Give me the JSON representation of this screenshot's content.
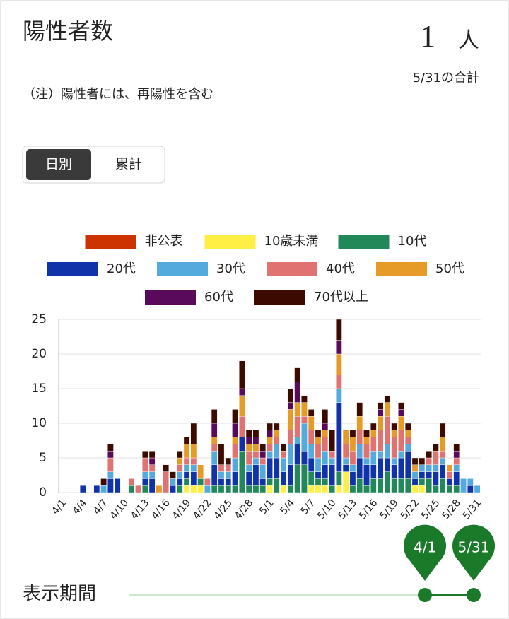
{
  "header": {
    "title": "陽性者数",
    "value": 1,
    "unit": "人",
    "caption": "5/31の合計",
    "note": "（注）陽性者には、再陽性を含む"
  },
  "tabs": [
    "日別",
    "累計"
  ],
  "chart_data": {
    "type": "bar",
    "stacked": true,
    "categories": [
      "4/1",
      null,
      null,
      "4/4",
      null,
      null,
      "4/7",
      null,
      null,
      "4/10",
      null,
      null,
      "4/13",
      null,
      null,
      "4/16",
      null,
      null,
      "4/19",
      null,
      null,
      "4/22",
      null,
      null,
      "4/25",
      null,
      null,
      "4/28",
      null,
      null,
      "5/1",
      null,
      null,
      "5/4",
      null,
      null,
      "5/7",
      null,
      null,
      "5/10",
      null,
      null,
      "5/13",
      null,
      null,
      "5/16",
      null,
      null,
      "5/19",
      null,
      null,
      "5/22",
      null,
      null,
      "5/25",
      null,
      null,
      "5/28",
      null,
      null,
      "5/31"
    ],
    "series": [
      {
        "name": "非公表",
        "color": "#cc3300",
        "values": [
          0,
          0,
          0,
          0,
          0,
          0,
          0,
          0,
          0,
          0,
          0,
          0,
          0,
          0,
          0,
          0,
          0,
          0,
          0,
          0,
          0,
          0,
          0,
          0,
          0,
          0,
          0,
          0,
          0,
          0,
          0,
          0,
          0,
          0,
          0,
          0,
          0,
          0,
          0,
          0,
          0,
          0,
          0,
          0,
          0,
          0,
          0,
          0,
          0,
          0,
          0,
          0,
          0,
          0,
          0,
          0,
          0,
          0,
          0,
          0,
          0
        ]
      },
      {
        "name": "10歳未満",
        "color": "#ffee44",
        "values": [
          0,
          0,
          0,
          0,
          0,
          0,
          0,
          0,
          0,
          0,
          0,
          0,
          0,
          0,
          0,
          0,
          0,
          0,
          1,
          1,
          1,
          0,
          0,
          0,
          0,
          0,
          0,
          0,
          0,
          0,
          1,
          0,
          1,
          0,
          0,
          0,
          1,
          1,
          1,
          0,
          1,
          3,
          0,
          0,
          0,
          0,
          0,
          0,
          0,
          0,
          0,
          1,
          1,
          0,
          0,
          0,
          0,
          0,
          0,
          0,
          0
        ]
      },
      {
        "name": "10代",
        "color": "#22885a",
        "values": [
          0,
          0,
          0,
          0,
          0,
          0,
          0,
          0,
          0,
          0,
          1,
          0,
          1,
          0,
          0,
          0,
          0,
          1,
          1,
          0,
          1,
          0,
          1,
          1,
          1,
          1,
          6,
          1,
          1,
          1,
          1,
          2,
          0,
          1,
          4,
          4,
          2,
          1,
          1,
          1,
          2,
          0,
          1,
          2,
          1,
          2,
          2,
          3,
          2,
          2,
          2,
          0,
          1,
          2,
          1,
          2,
          1,
          1,
          0,
          0,
          0
        ]
      },
      {
        "name": "20代",
        "color": "#1133aa",
        "values": [
          0,
          0,
          0,
          1,
          0,
          1,
          0,
          2,
          2,
          0,
          0,
          0,
          1,
          2,
          0,
          0,
          1,
          1,
          1,
          2,
          0,
          0,
          3,
          1,
          1,
          2,
          2,
          2,
          3,
          1,
          3,
          3,
          2,
          3,
          3,
          2,
          2,
          1,
          2,
          3,
          10,
          1,
          2,
          3,
          3,
          2,
          3,
          2,
          2,
          3,
          4,
          1,
          1,
          1,
          2,
          2,
          1,
          2,
          0,
          1,
          0
        ]
      },
      {
        "name": "30代",
        "color": "#55aadd",
        "values": [
          0,
          0,
          0,
          0,
          0,
          0,
          1,
          1,
          0,
          0,
          0,
          0,
          1,
          1,
          0,
          0,
          1,
          1,
          1,
          1,
          0,
          1,
          2,
          1,
          1,
          2,
          0,
          1,
          1,
          2,
          1,
          2,
          2,
          3,
          1,
          4,
          2,
          2,
          2,
          1,
          2,
          1,
          1,
          2,
          1,
          2,
          1,
          2,
          1,
          1,
          1,
          1,
          1,
          1,
          1,
          1,
          0,
          1,
          2,
          1,
          1
        ]
      },
      {
        "name": "40代",
        "color": "#e07272",
        "values": [
          0,
          0,
          0,
          0,
          0,
          0,
          0,
          2,
          0,
          0,
          1,
          1,
          2,
          1,
          0,
          3,
          0,
          1,
          1,
          1,
          0,
          1,
          1,
          1,
          1,
          2,
          3,
          2,
          1,
          1,
          1,
          1,
          1,
          2,
          3,
          1,
          2,
          2,
          2,
          1,
          2,
          2,
          2,
          2,
          2,
          2,
          3,
          4,
          3,
          3,
          1,
          0,
          0,
          1,
          2,
          1,
          1,
          1,
          0,
          0,
          0
        ]
      },
      {
        "name": "50代",
        "color": "#e69a28",
        "values": [
          0,
          0,
          0,
          0,
          0,
          0,
          0,
          0,
          0,
          0,
          0,
          0,
          0,
          0,
          1,
          0,
          0,
          1,
          2,
          2,
          2,
          0,
          1,
          0,
          0,
          1,
          3,
          1,
          1,
          0,
          1,
          1,
          0,
          3,
          2,
          2,
          2,
          1,
          1,
          0,
          3,
          2,
          2,
          2,
          1,
          1,
          2,
          2,
          1,
          2,
          1,
          1,
          0,
          0,
          0,
          2,
          1,
          0,
          0,
          0,
          0
        ]
      },
      {
        "name": "60代",
        "color": "#5a0a5a",
        "values": [
          0,
          0,
          0,
          0,
          0,
          0,
          0,
          1,
          0,
          0,
          0,
          0,
          0,
          1,
          0,
          0,
          0,
          0,
          0,
          0,
          0,
          0,
          2,
          0,
          0,
          2,
          1,
          1,
          1,
          1,
          1,
          0,
          0,
          1,
          3,
          0,
          0,
          0,
          1,
          0,
          2,
          0,
          0,
          0,
          0,
          0,
          1,
          0,
          0,
          1,
          0,
          0,
          0,
          0,
          0,
          0,
          0,
          1,
          0,
          0,
          0
        ]
      },
      {
        "name": "70代以上",
        "color": "#3d0a00",
        "values": [
          0,
          0,
          0,
          0,
          0,
          0,
          1,
          1,
          0,
          0,
          0,
          0,
          1,
          1,
          0,
          1,
          1,
          1,
          1,
          3,
          0,
          0,
          2,
          3,
          1,
          2,
          4,
          1,
          1,
          1,
          1,
          1,
          1,
          2,
          2,
          1,
          1,
          1,
          2,
          3,
          3,
          0,
          1,
          2,
          1,
          1,
          1,
          1,
          1,
          1,
          1,
          1,
          1,
          1,
          1,
          2,
          0,
          1,
          0,
          0,
          0
        ]
      }
    ],
    "ylim": [
      0,
      25
    ],
    "yticks": [
      0,
      5,
      10,
      15,
      20,
      25
    ],
    "grid": true
  },
  "period": {
    "label": "表示期間",
    "start": "4/1",
    "end": "5/31"
  }
}
